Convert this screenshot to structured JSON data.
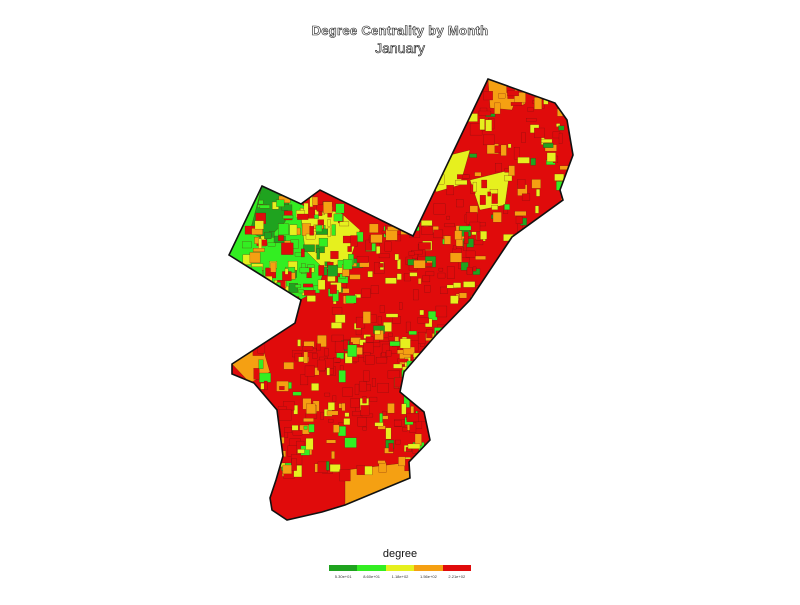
{
  "title": "Degree Centrality by Month",
  "subtitle": "January",
  "legend": {
    "title": "degree",
    "colors": [
      "#1fa31f",
      "#33ee22",
      "#e6f01e",
      "#f5a012",
      "#e00b0b"
    ],
    "ticks": [
      "5.30e+01",
      "8.60e+01",
      "1.18e+02",
      "1.56e+02",
      "2.21e+02"
    ]
  },
  "map": {
    "region": "Philadelphia",
    "fill_default": "#e00b0b",
    "outline_color": "#111111"
  }
}
